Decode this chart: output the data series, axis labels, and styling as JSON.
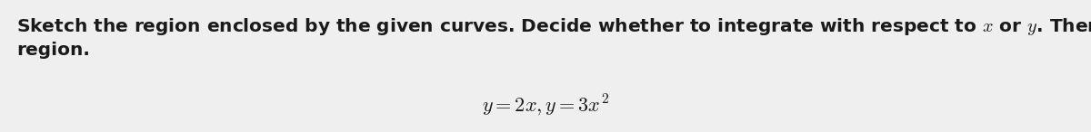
{
  "background_color": "#efefef",
  "paragraph_line1": "Sketch the region enclosed by the given curves. Decide whether to integrate with respect to $x$ or $y$. Then find the area of the",
  "paragraph_line2": "region.",
  "formula": "$y = 2x, y = 3x^2$",
  "text_color": "#1a1a1a",
  "font_size_body": 14.5,
  "font_size_formula": 16,
  "fig_width": 12.0,
  "fig_height": 1.46,
  "dpi": 100
}
